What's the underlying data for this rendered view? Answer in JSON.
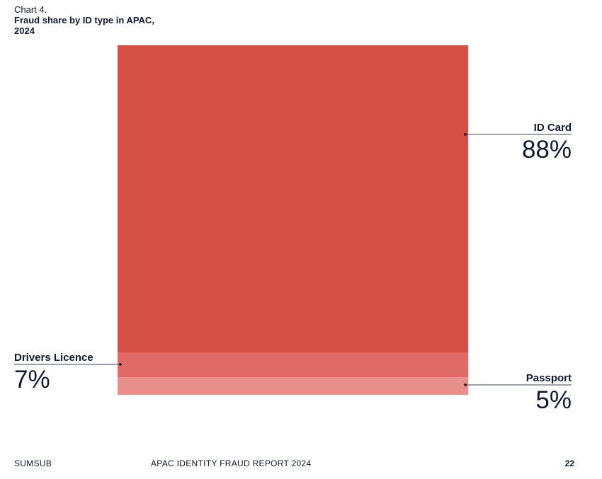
{
  "header": {
    "chart_label": "Chart 4.",
    "title": "Fraud share by ID type in APAC, 2024"
  },
  "chart_data": {
    "type": "area",
    "title": "Fraud share by ID type in APAC, 2024",
    "unit": "%",
    "total": 100,
    "series": [
      {
        "name": "ID Card",
        "value": 88,
        "label": "88%",
        "color": "#d64f45"
      },
      {
        "name": "Drivers Licence",
        "value": 7,
        "label": "7%",
        "color": "#e06b66"
      },
      {
        "name": "Passport",
        "value": 5,
        "label": "5%",
        "color": "#e68f8b"
      }
    ]
  },
  "footer": {
    "brand": "SUMSUB",
    "report": "APAC IDENTITY FRAUD REPORT 2024",
    "page": "22"
  }
}
